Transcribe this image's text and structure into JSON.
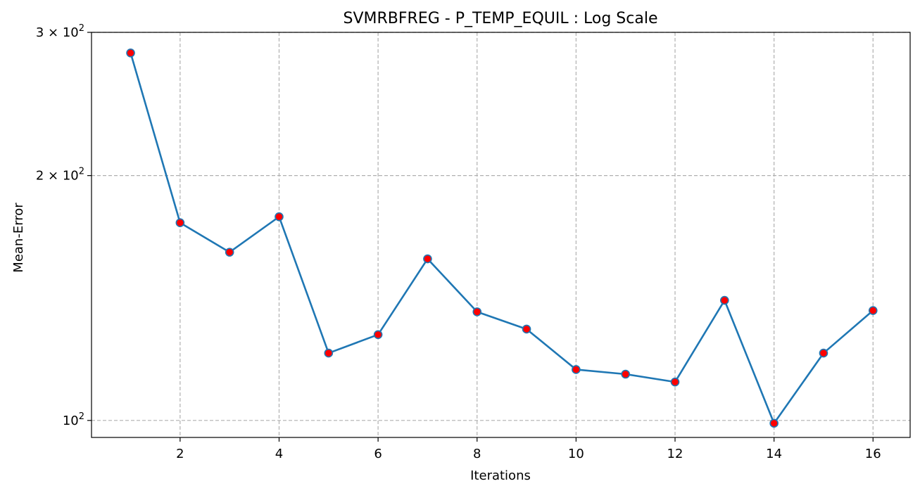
{
  "chart_data": {
    "type": "line",
    "title": "SVMRBFREG - P_TEMP_EQUIL : Log Scale",
    "xlabel": "Iterations",
    "ylabel": "Mean-Error",
    "yscale": "log",
    "grid": true,
    "x": [
      1,
      2,
      3,
      4,
      5,
      6,
      7,
      8,
      9,
      10,
      11,
      12,
      13,
      14,
      15,
      16
    ],
    "series": [
      {
        "values": [
          283,
          175,
          161,
          178,
          121,
          127.5,
          158,
          136,
          129.5,
          115.5,
          114,
          111.5,
          140.5,
          99.2,
          121,
          136.5
        ]
      }
    ],
    "xticks": [
      2,
      4,
      6,
      8,
      10,
      12,
      14,
      16
    ],
    "xtick_labels": [
      "2",
      "4",
      "6",
      "8",
      "10",
      "12",
      "14",
      "16"
    ],
    "yticks": [
      {
        "value": 100,
        "base": "10",
        "exp": "2"
      },
      {
        "value": 200,
        "coef": "2",
        "base": "10",
        "exp": "2"
      },
      {
        "value": 300,
        "coef": "3",
        "base": "10",
        "exp": "2"
      }
    ],
    "xlim": [
      0.21,
      16.75
    ],
    "ylim": [
      95.3,
      300
    ],
    "line_color": "#1f77b4",
    "marker_color": "#ff0000",
    "marker_edge_color": "#1f77b4"
  }
}
